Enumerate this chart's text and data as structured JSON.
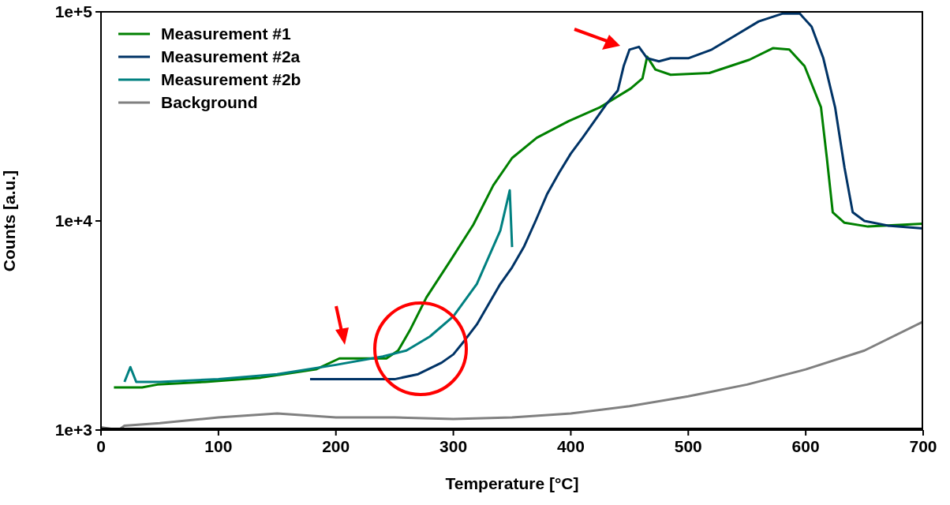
{
  "chart_data": {
    "type": "line",
    "xlabel": "Temperature [°C]",
    "ylabel": "Counts [a.u.]",
    "log": "y",
    "xlim": [
      0,
      700
    ],
    "xticks": [
      0,
      100,
      200,
      300,
      400,
      500,
      600,
      700
    ],
    "ylim": [
      1000,
      100000
    ],
    "yticks": [
      {
        "value": 1000,
        "label": "1e+3"
      },
      {
        "value": 10000,
        "label": "1e+4"
      },
      {
        "value": 100000,
        "label": "1e+5"
      }
    ],
    "grid": false,
    "legend": "top left",
    "series": [
      {
        "name": "Measurement #1",
        "color": "#008000",
        "x": [
          11,
          35,
          48,
          89,
          136,
          183,
          203,
          223,
          243,
          253,
          263,
          277,
          297,
          317,
          334,
          350,
          371,
          398,
          425,
          451,
          461,
          465,
          472,
          485,
          518,
          552,
          572,
          586,
          599,
          613,
          618,
          623,
          633,
          653,
          700
        ],
        "values": [
          1600,
          1600,
          1650,
          1700,
          1780,
          1950,
          2200,
          2200,
          2200,
          2400,
          3000,
          4300,
          6400,
          9600,
          14800,
          20000,
          25000,
          30000,
          35000,
          43000,
          48000,
          61000,
          53000,
          50000,
          51000,
          59000,
          67000,
          66000,
          55000,
          35000,
          20000,
          11000,
          9800,
          9400,
          9700
        ]
      },
      {
        "name": "Measurement #2a",
        "color": "#003366",
        "x": [
          178,
          200,
          230,
          250,
          270,
          290,
          300,
          310,
          320,
          330,
          340,
          350,
          360,
          370,
          380,
          390,
          400,
          410,
          420,
          430,
          440,
          445,
          450,
          458,
          465,
          475,
          485,
          500,
          520,
          540,
          560,
          580,
          595,
          605,
          615,
          625,
          633,
          640,
          650,
          670,
          700
        ],
        "values": [
          1750,
          1750,
          1750,
          1750,
          1850,
          2100,
          2300,
          2700,
          3200,
          4000,
          5000,
          6000,
          7500,
          10000,
          13500,
          17000,
          21000,
          25000,
          30000,
          36000,
          42000,
          55000,
          66000,
          68000,
          60000,
          58000,
          60000,
          60000,
          66000,
          77000,
          90000,
          98000,
          98000,
          85000,
          60000,
          35000,
          18000,
          11000,
          10000,
          9500,
          9200
        ]
      },
      {
        "name": "Measurement #2b",
        "color": "#008080",
        "x": [
          20,
          25,
          30,
          50,
          100,
          150,
          200,
          240,
          260,
          280,
          300,
          320,
          340,
          348,
          350
        ],
        "values": [
          1700,
          2000,
          1700,
          1700,
          1750,
          1850,
          2050,
          2250,
          2400,
          2800,
          3500,
          5000,
          9000,
          14000,
          7500
        ]
      },
      {
        "name": "Background",
        "color": "#808080",
        "x": [
          0,
          15,
          20,
          50,
          100,
          150,
          200,
          250,
          300,
          350,
          400,
          450,
          500,
          550,
          600,
          650,
          700
        ],
        "values": [
          1030,
          1000,
          1050,
          1080,
          1150,
          1200,
          1150,
          1150,
          1130,
          1150,
          1200,
          1300,
          1450,
          1650,
          1950,
          2400,
          3300
        ]
      }
    ]
  }
}
